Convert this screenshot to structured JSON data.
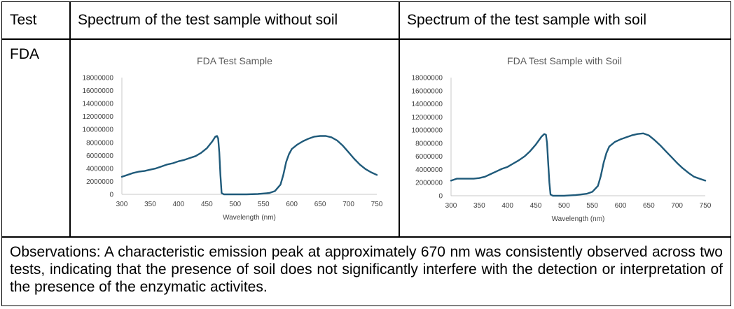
{
  "table": {
    "headers": [
      "Test",
      "Spectrum of the test sample without soil",
      "Spectrum of the test sample with soil"
    ],
    "row_label": "FDA"
  },
  "observations": "Observations: A characteristic emission peak at approximately 670 nm was consistently observed across two tests, indicating that the presence of soil does not significantly interfere with the detection or interpretation of the presence of the enzymatic activites.",
  "colors": {
    "line": "#1f5a7a",
    "axis": "#c8c8c8",
    "title": "#595959"
  },
  "chart_data": [
    {
      "type": "line",
      "title": "FDA Test Sample",
      "xlabel": "Wavelength (nm)",
      "ylabel": "",
      "xlim": [
        300,
        750
      ],
      "ylim": [
        0,
        18000000
      ],
      "xticks": [
        300,
        350,
        400,
        450,
        500,
        550,
        600,
        650,
        700,
        750
      ],
      "yticks": [
        0,
        2000000,
        4000000,
        6000000,
        8000000,
        10000000,
        12000000,
        14000000,
        16000000,
        18000000
      ],
      "grid": false,
      "x": [
        300,
        310,
        320,
        330,
        340,
        350,
        360,
        370,
        380,
        390,
        400,
        410,
        420,
        430,
        440,
        450,
        460,
        465,
        468,
        470,
        472,
        474,
        476,
        480,
        490,
        500,
        520,
        540,
        560,
        570,
        580,
        585,
        590,
        595,
        600,
        610,
        620,
        630,
        640,
        650,
        660,
        670,
        680,
        690,
        700,
        710,
        720,
        730,
        740,
        750
      ],
      "y": [
        2700000,
        3000000,
        3300000,
        3500000,
        3600000,
        3800000,
        4000000,
        4300000,
        4600000,
        4800000,
        5100000,
        5300000,
        5600000,
        5900000,
        6400000,
        7100000,
        8200000,
        8900000,
        9000000,
        8600000,
        6500000,
        3000000,
        200000,
        0,
        0,
        0,
        0,
        50000,
        200000,
        500000,
        1500000,
        3000000,
        5000000,
        6200000,
        7000000,
        7700000,
        8200000,
        8600000,
        8900000,
        9000000,
        9000000,
        8800000,
        8300000,
        7500000,
        6500000,
        5500000,
        4600000,
        3900000,
        3400000,
        3000000
      ]
    },
    {
      "type": "line",
      "title": "FDA Test Sample with Soil",
      "xlabel": "Wavelength (nm)",
      "ylabel": "",
      "xlim": [
        300,
        750
      ],
      "ylim": [
        0,
        18000000
      ],
      "xticks": [
        300,
        350,
        400,
        450,
        500,
        550,
        600,
        650,
        700,
        750
      ],
      "yticks": [
        0,
        2000000,
        4000000,
        6000000,
        8000000,
        10000000,
        12000000,
        14000000,
        16000000,
        18000000
      ],
      "grid": false,
      "x": [
        300,
        310,
        320,
        330,
        340,
        350,
        360,
        370,
        380,
        390,
        400,
        410,
        420,
        430,
        440,
        450,
        460,
        465,
        468,
        470,
        472,
        474,
        476,
        480,
        490,
        500,
        520,
        540,
        550,
        560,
        565,
        570,
        575,
        580,
        590,
        600,
        610,
        620,
        630,
        640,
        650,
        660,
        670,
        680,
        690,
        700,
        710,
        720,
        730,
        740,
        750
      ],
      "y": [
        2300000,
        2600000,
        2600000,
        2600000,
        2600000,
        2700000,
        2900000,
        3300000,
        3700000,
        4100000,
        4400000,
        4900000,
        5400000,
        6000000,
        6800000,
        7800000,
        9000000,
        9400000,
        9300000,
        8000000,
        5000000,
        2000000,
        200000,
        0,
        0,
        0,
        100000,
        300000,
        600000,
        1500000,
        3000000,
        5000000,
        6500000,
        7500000,
        8200000,
        8600000,
        8900000,
        9200000,
        9400000,
        9500000,
        9200000,
        8500000,
        7700000,
        6800000,
        5900000,
        5000000,
        4200000,
        3500000,
        2900000,
        2600000,
        2300000
      ]
    }
  ]
}
